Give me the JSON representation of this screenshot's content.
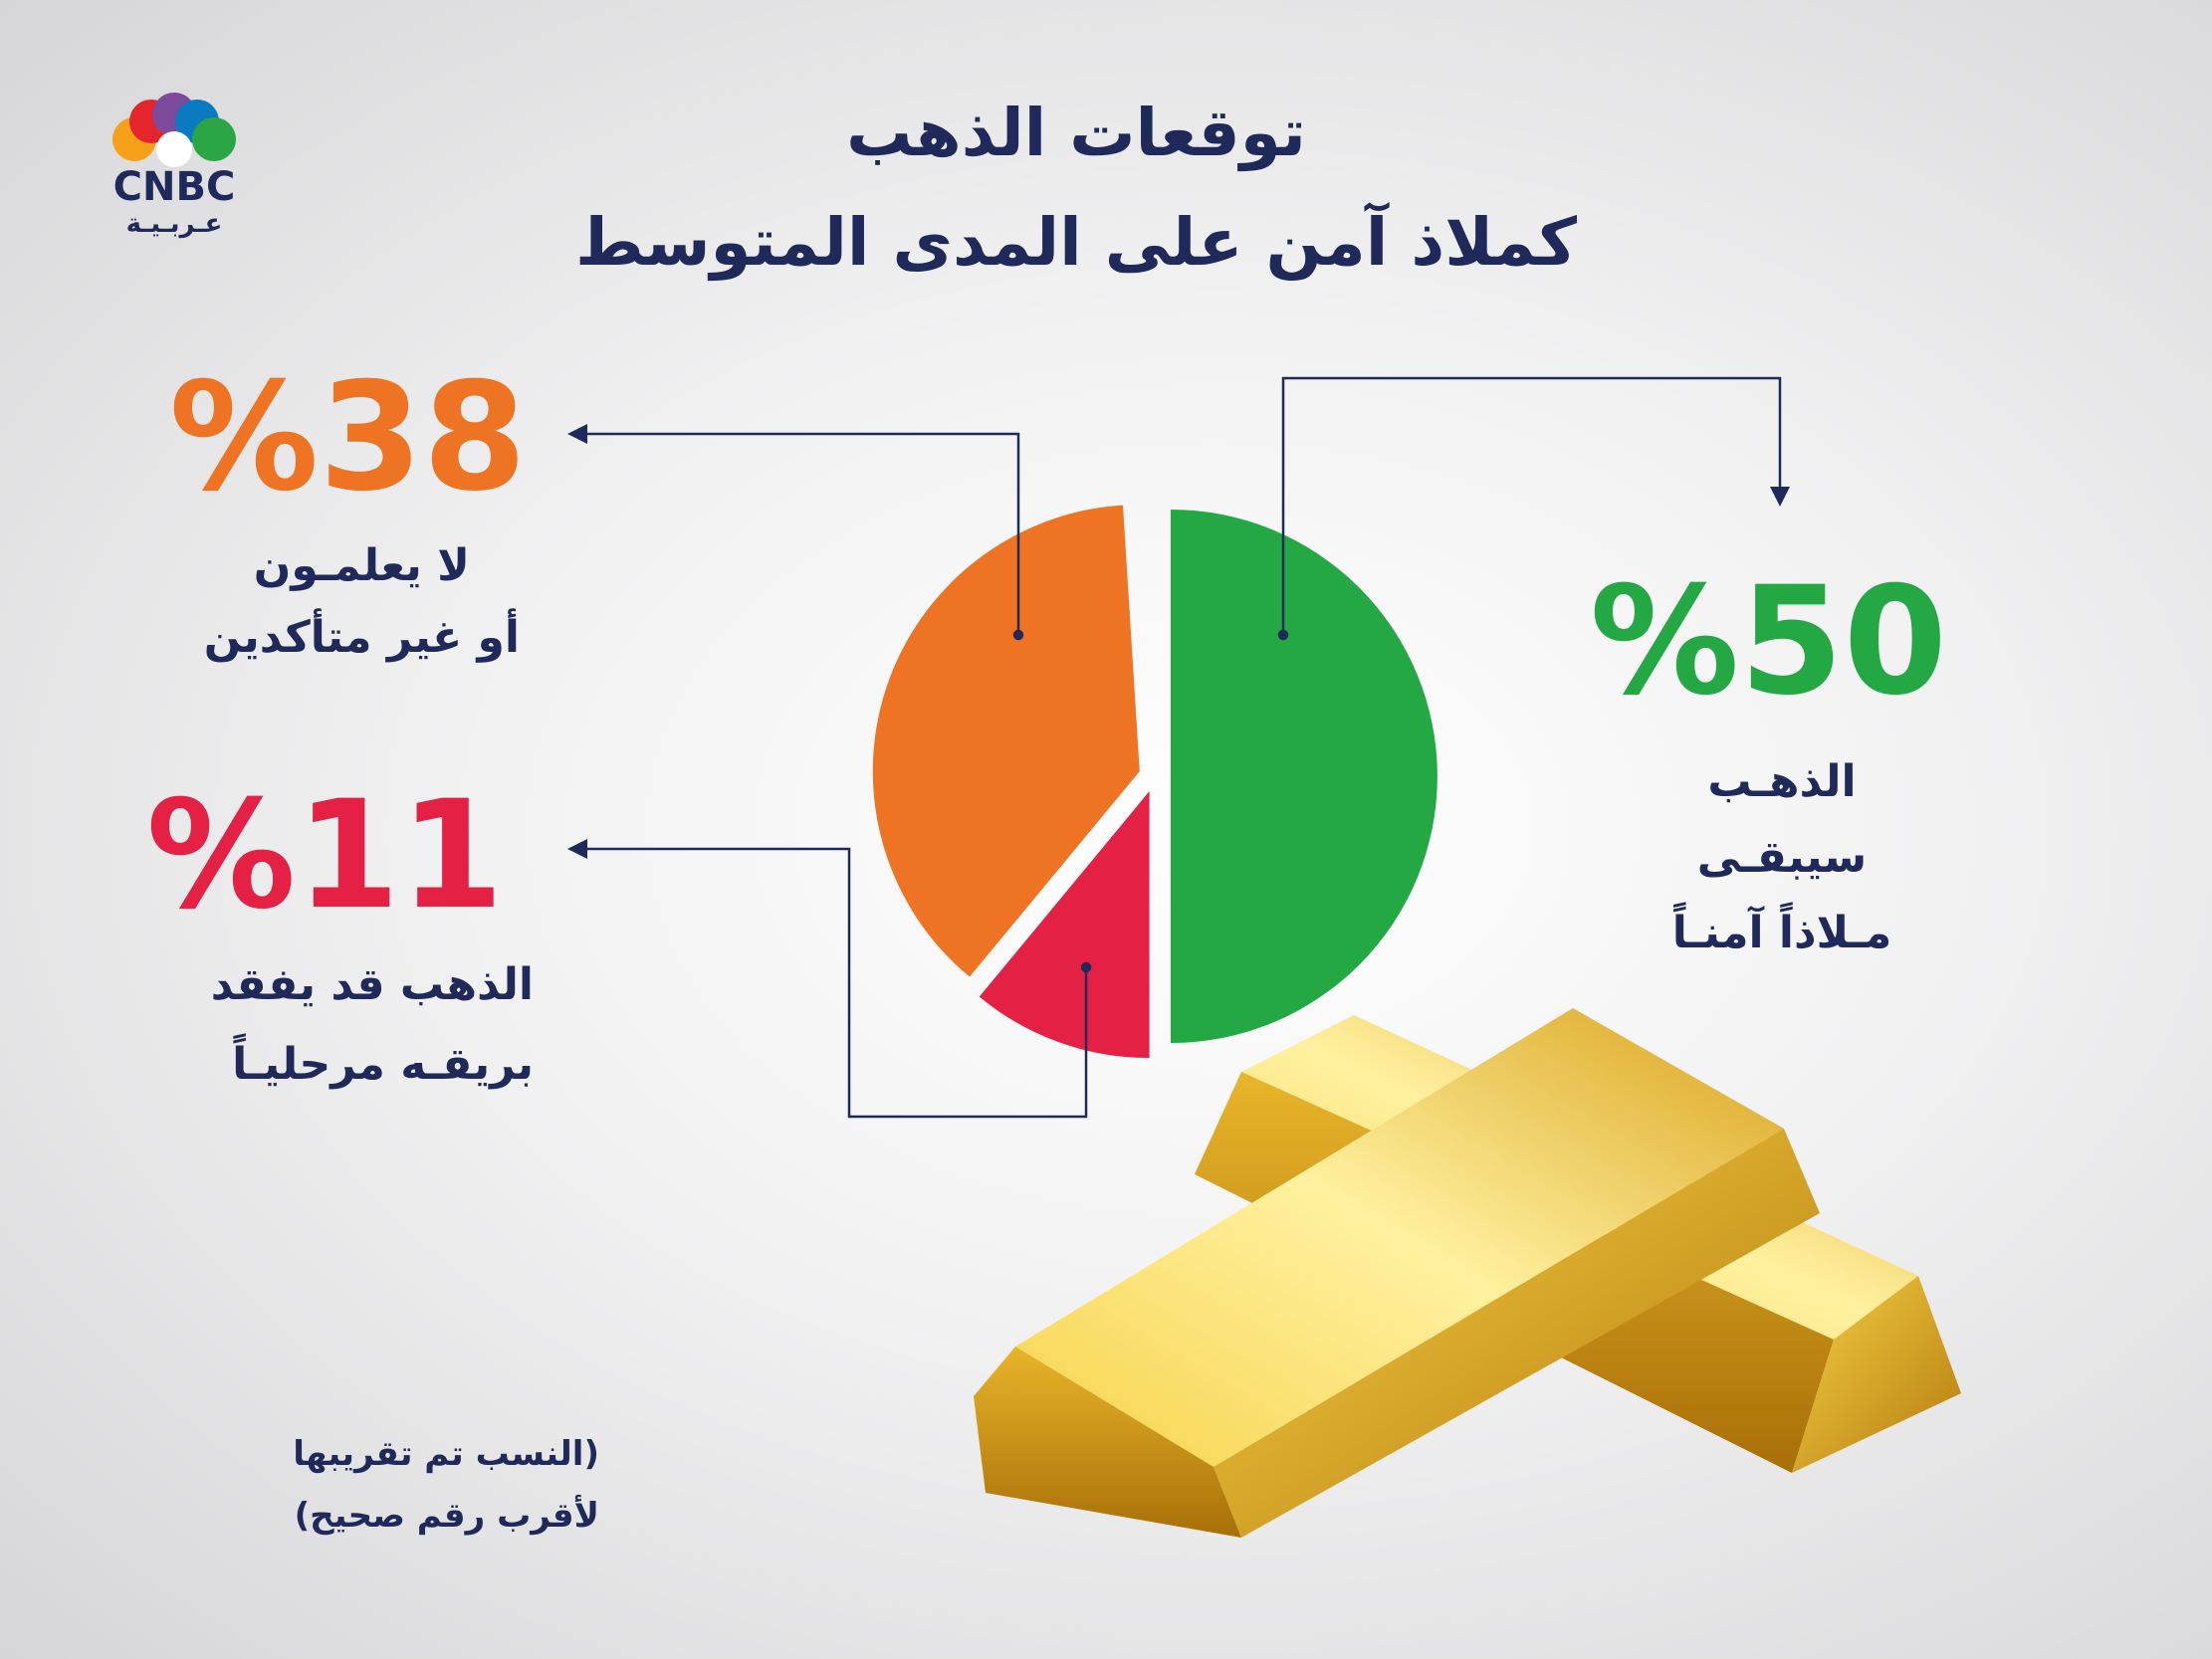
{
  "logo": {
    "text": "CNBC",
    "subtitle": "عـربـيـة"
  },
  "chart_data": {
    "type": "pie",
    "title": "توقعات الذهب",
    "subtitle": "كملاذ آمن على المدى المتوسط",
    "categories": [
      "الذهـب\nسيبقـى\nمـلاذاً آمنـاً",
      "الذهب قد يفقد\nبريقـه مرحليـاً",
      "لا يعلمـون\nأو غير متأكدين"
    ],
    "values": [
      50,
      11,
      38
    ],
    "value_labels": [
      "%50",
      "%11",
      "%38"
    ],
    "colors": [
      "#23a843",
      "#e42045",
      "#ee7423"
    ],
    "note": "(النسب تم تقريبها\nلأقرب رقم صحيح)"
  }
}
